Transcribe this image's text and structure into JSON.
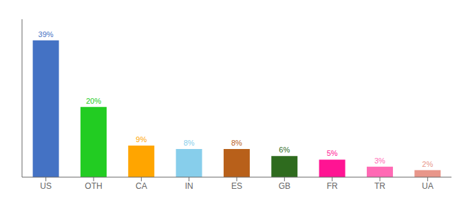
{
  "chart_data": {
    "type": "bar",
    "categories": [
      "US",
      "OTH",
      "CA",
      "IN",
      "ES",
      "GB",
      "FR",
      "TR",
      "UA"
    ],
    "values": [
      39,
      20,
      9,
      8,
      8,
      6,
      5,
      3,
      2
    ],
    "value_labels": [
      "39%",
      "20%",
      "9%",
      "8%",
      "8%",
      "6%",
      "5%",
      "3%",
      "2%"
    ],
    "colors": [
      "#4472C4",
      "#22CC22",
      "#FFA500",
      "#87CEEB",
      "#B8601A",
      "#2E6B1E",
      "#FF1493",
      "#FF69B4",
      "#E8968A"
    ],
    "ylim": [
      0,
      45
    ],
    "data_labels": true,
    "tick_labels": "x",
    "grid": false
  }
}
